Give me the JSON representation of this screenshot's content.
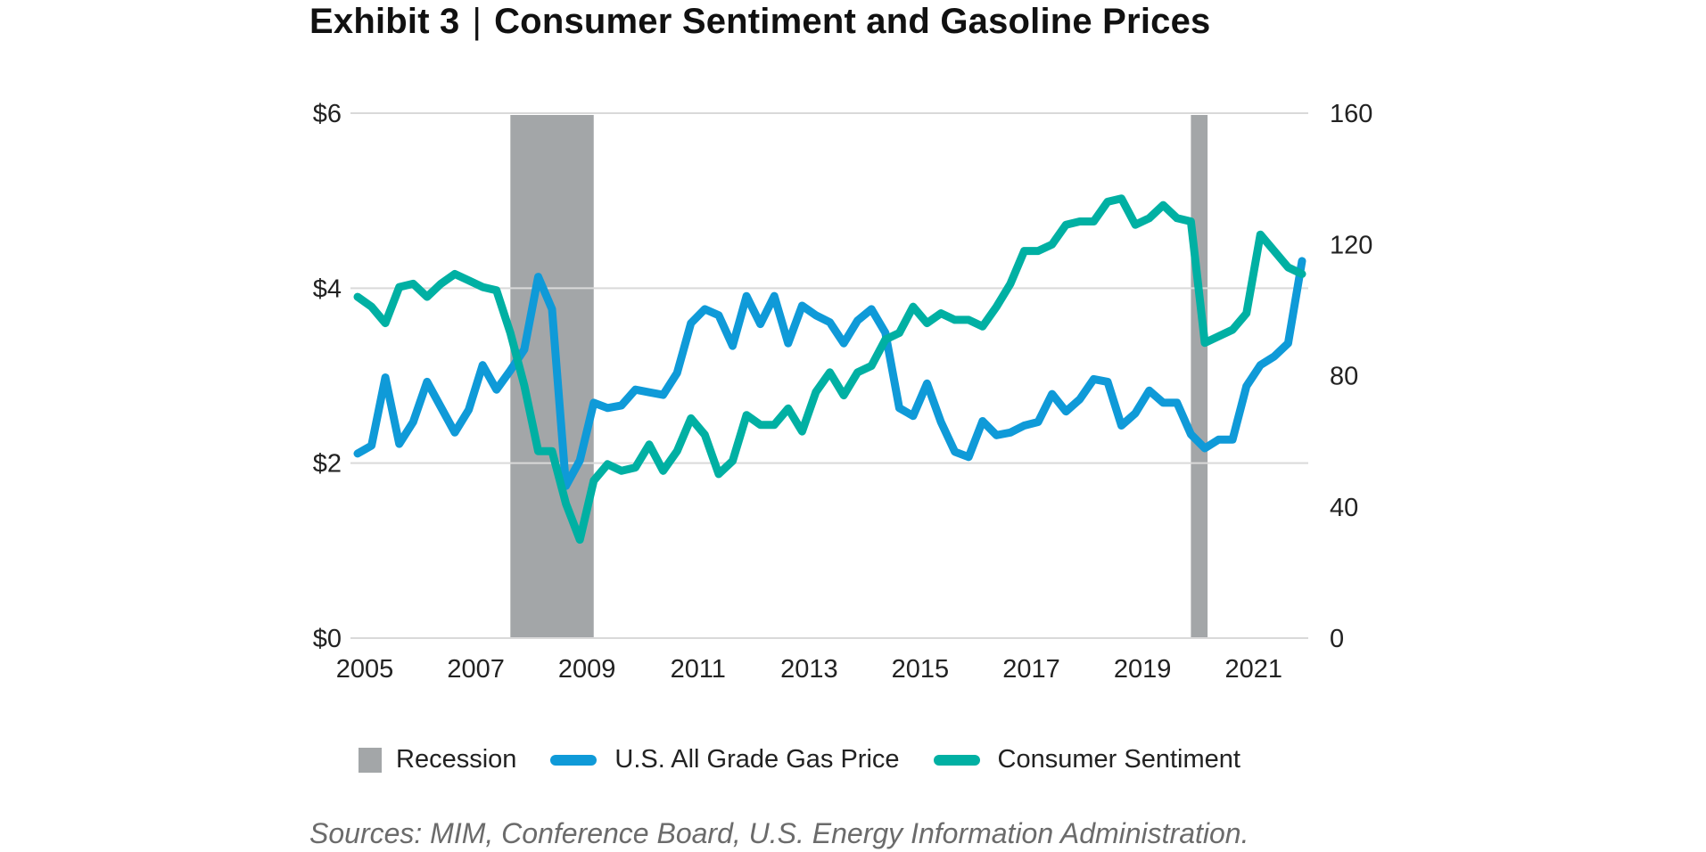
{
  "header": {
    "exhibit": "Exhibit 3",
    "separator": "|",
    "title": "Consumer Sentiment and Gasoline Prices"
  },
  "legend": {
    "recession": "Recession",
    "gas": "U.S. All Grade Gas Price",
    "sentiment": "Consumer Sentiment"
  },
  "source": "Sources: MIM, Conference Board, U.S. Energy Information Administration.",
  "colors": {
    "gas": "#0f9ad8",
    "sentiment": "#00b0a3",
    "recession": "#a3a6a8",
    "grid": "#d9d9d9"
  },
  "chart_data": {
    "type": "line",
    "title": "Exhibit 3 | Consumer Sentiment and Gasoline Prices",
    "frequency": "quarterly",
    "x_start": "2005Q1",
    "x_end": "2022Q1",
    "x_range": [
      2005.0,
      2022.0
    ],
    "x_ticks": [
      "2005",
      "2007",
      "2009",
      "2011",
      "2013",
      "2015",
      "2017",
      "2019",
      "2021"
    ],
    "y_left": {
      "label": "",
      "range": [
        0,
        6
      ],
      "ticks": [
        "$0",
        "$2",
        "$4",
        "$6"
      ],
      "tick_values": [
        0,
        2,
        4,
        6
      ]
    },
    "y_right": {
      "label": "",
      "range": [
        0,
        160
      ],
      "ticks": [
        "0",
        "40",
        "80",
        "120",
        "160"
      ],
      "tick_values": [
        0,
        40,
        80,
        120,
        160
      ]
    },
    "grid": "horizontal (left axis)",
    "legend_position": "bottom",
    "recessions": [
      {
        "name": "Great Recession",
        "start": 2007.75,
        "end": 2009.25
      },
      {
        "name": "COVID-19 Recession",
        "start": 2020.0,
        "end": 2020.3
      }
    ],
    "series": [
      {
        "name": "U.S. All Grade Gas Price",
        "axis": "left",
        "units": "USD per gallon",
        "values": [
          2.11,
          2.2,
          2.98,
          2.22,
          2.47,
          2.93,
          2.64,
          2.35,
          2.61,
          3.12,
          2.84,
          3.06,
          3.3,
          4.13,
          3.76,
          1.74,
          2.03,
          2.69,
          2.63,
          2.66,
          2.84,
          2.81,
          2.78,
          3.03,
          3.6,
          3.76,
          3.69,
          3.34,
          3.91,
          3.59,
          3.91,
          3.37,
          3.8,
          3.69,
          3.61,
          3.37,
          3.63,
          3.76,
          3.49,
          2.63,
          2.54,
          2.91,
          2.47,
          2.13,
          2.07,
          2.48,
          2.32,
          2.35,
          2.43,
          2.47,
          2.79,
          2.59,
          2.73,
          2.96,
          2.93,
          2.43,
          2.57,
          2.83,
          2.69,
          2.69,
          2.33,
          2.17,
          2.27,
          2.27,
          2.88,
          3.12,
          3.22,
          3.37,
          4.31
        ]
      },
      {
        "name": "Consumer Sentiment",
        "axis": "right",
        "units": "index",
        "values": [
          104,
          101,
          96,
          107,
          108,
          104,
          108,
          111,
          109,
          107,
          106,
          93,
          77,
          57,
          57,
          41,
          30,
          48,
          53,
          51,
          52,
          59,
          51,
          57,
          67,
          62,
          50,
          54,
          68,
          65,
          65,
          70,
          63,
          75,
          81,
          74,
          81,
          83,
          91,
          93,
          101,
          96,
          99,
          97,
          97,
          95,
          101,
          108,
          118,
          118,
          120,
          126,
          127,
          127,
          133,
          134,
          126,
          128,
          132,
          128,
          127,
          90,
          92,
          94,
          99,
          123,
          118,
          113,
          111
        ]
      }
    ]
  }
}
